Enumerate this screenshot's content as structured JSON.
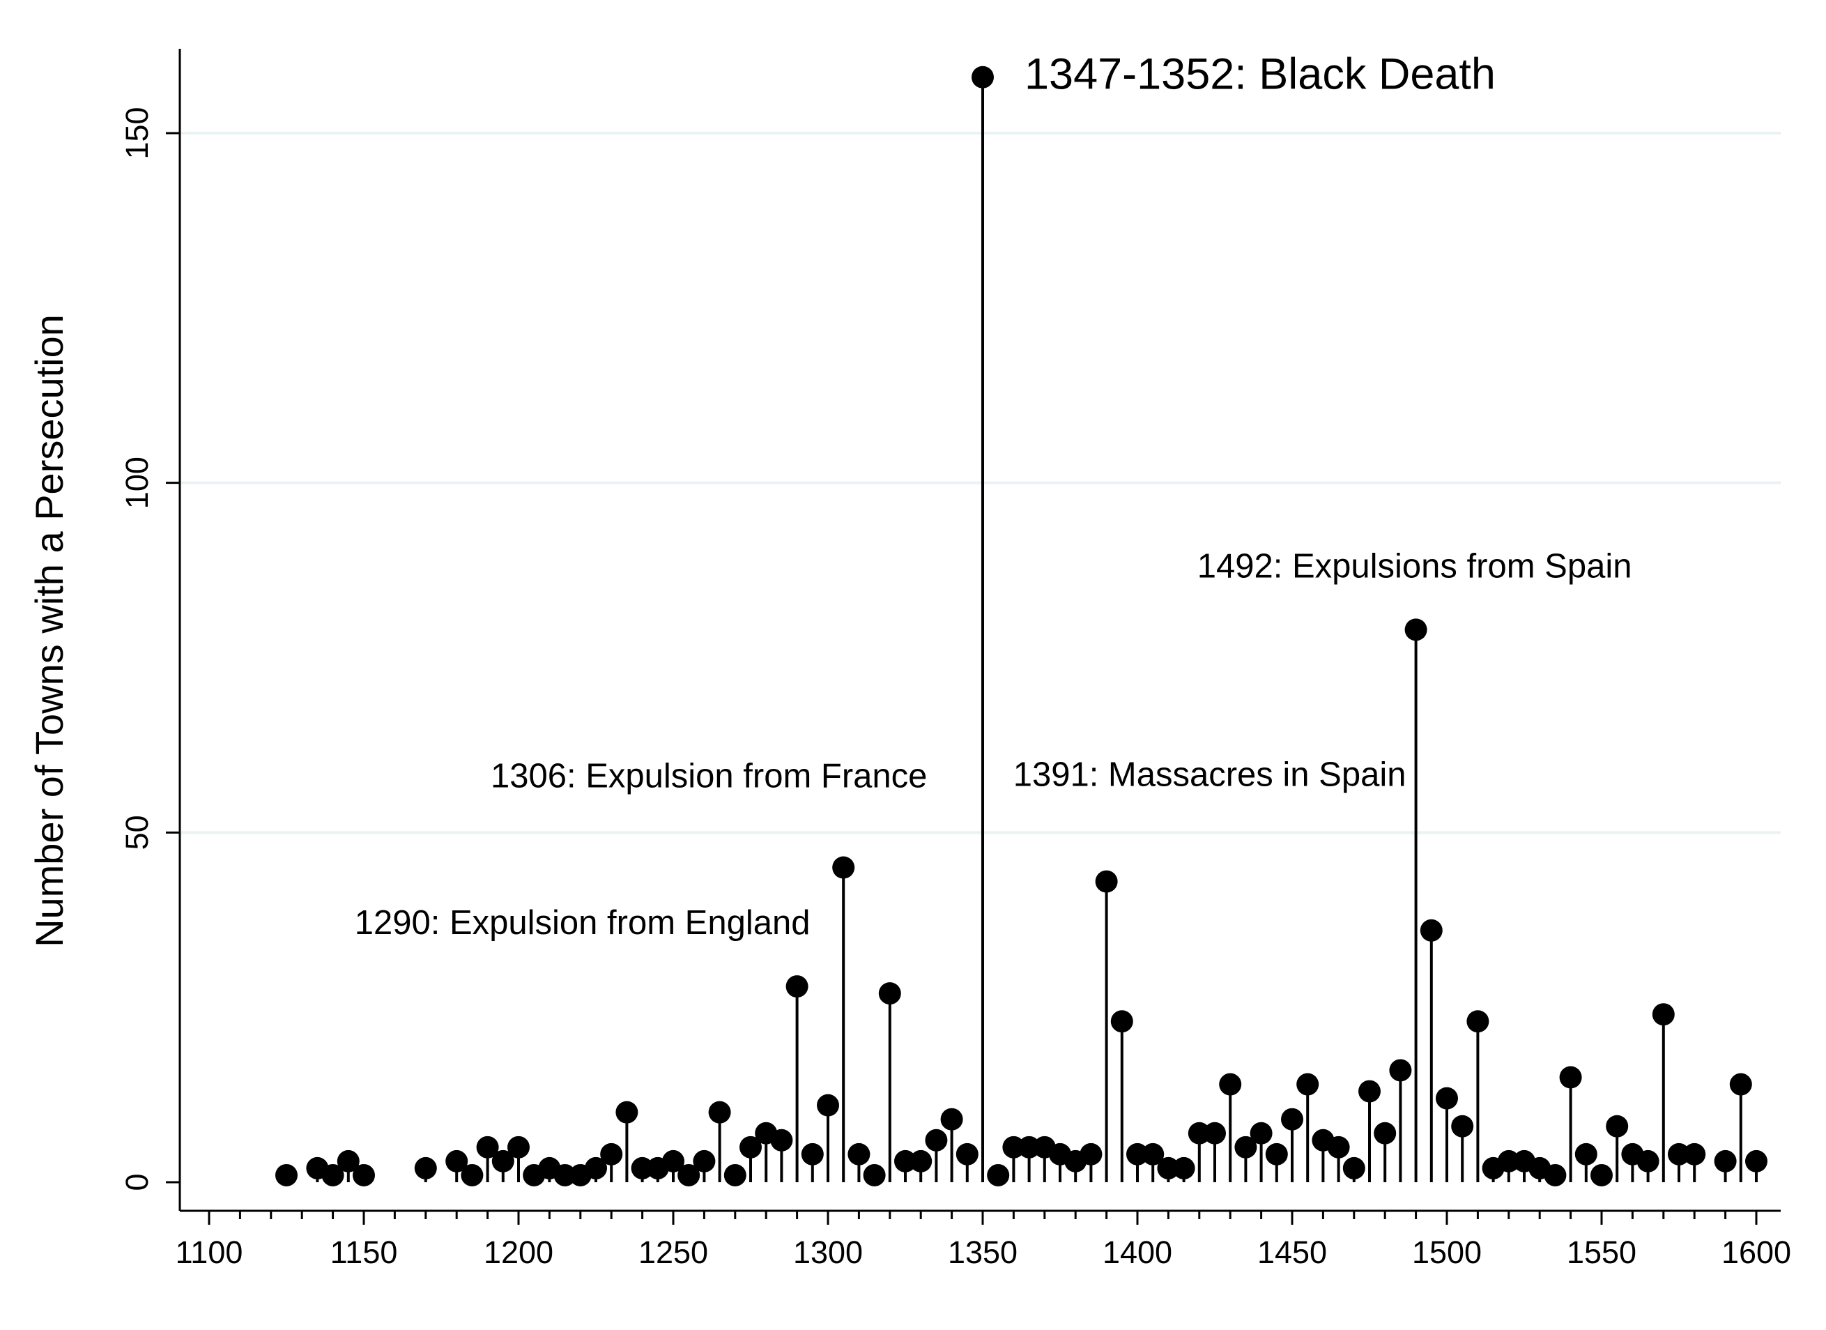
{
  "chart_data": {
    "type": "scatter",
    "style": "dropline",
    "title": "",
    "xlabel": "",
    "ylabel": "Number of Towns with a Persecution",
    "xlim": [
      1100,
      1600
    ],
    "ylim": [
      0,
      160
    ],
    "x_ticks": [
      1100,
      1150,
      1200,
      1250,
      1300,
      1350,
      1400,
      1450,
      1500,
      1550,
      1600
    ],
    "y_ticks": [
      0,
      50,
      100,
      150
    ],
    "grid": "horizontal",
    "marker_color": "#000000",
    "grid_color": "#eaf2f3",
    "x": [
      1125,
      1135,
      1140,
      1145,
      1150,
      1170,
      1180,
      1185,
      1190,
      1195,
      1200,
      1205,
      1210,
      1215,
      1220,
      1225,
      1230,
      1235,
      1240,
      1245,
      1250,
      1255,
      1260,
      1265,
      1270,
      1275,
      1280,
      1285,
      1290,
      1295,
      1300,
      1305,
      1310,
      1315,
      1320,
      1325,
      1330,
      1335,
      1340,
      1345,
      1350,
      1355,
      1360,
      1365,
      1370,
      1375,
      1380,
      1385,
      1390,
      1395,
      1400,
      1405,
      1410,
      1415,
      1420,
      1425,
      1430,
      1435,
      1440,
      1445,
      1450,
      1455,
      1460,
      1465,
      1470,
      1475,
      1480,
      1485,
      1490,
      1495,
      1500,
      1505,
      1510,
      1515,
      1520,
      1525,
      1530,
      1535,
      1540,
      1545,
      1550,
      1555,
      1560,
      1565,
      1570,
      1575,
      1580,
      1590,
      1595,
      1600
    ],
    "y": [
      1,
      2,
      1,
      3,
      1,
      2,
      3,
      1,
      5,
      3,
      5,
      1,
      2,
      1,
      1,
      2,
      4,
      10,
      2,
      2,
      3,
      1,
      3,
      10,
      1,
      5,
      7,
      6,
      28,
      4,
      11,
      45,
      4,
      1,
      27,
      3,
      3,
      6,
      9,
      4,
      158,
      1,
      5,
      5,
      5,
      4,
      3,
      4,
      43,
      23,
      4,
      4,
      2,
      2,
      7,
      7,
      14,
      5,
      7,
      4,
      9,
      14,
      6,
      5,
      2,
      13,
      7,
      16,
      79,
      36,
      12,
      8,
      23,
      2,
      3,
      3,
      2,
      1,
      15,
      4,
      1,
      8,
      4,
      3,
      24,
      4,
      4,
      3,
      14,
      3
    ],
    "annotations": [
      {
        "text": "1347-1352: Black Death",
        "x": 1350,
        "y": 158,
        "size": "large"
      },
      {
        "text": "1492: Expulsions from Spain",
        "x": 1490,
        "y": 79
      },
      {
        "text": "1306: Expulsion from France",
        "x": 1305,
        "y": 45
      },
      {
        "text": "1391: Massacres in Spain",
        "x": 1390,
        "y": 43
      },
      {
        "text": "1290: Expulsion from England",
        "x": 1290,
        "y": 28
      }
    ]
  }
}
